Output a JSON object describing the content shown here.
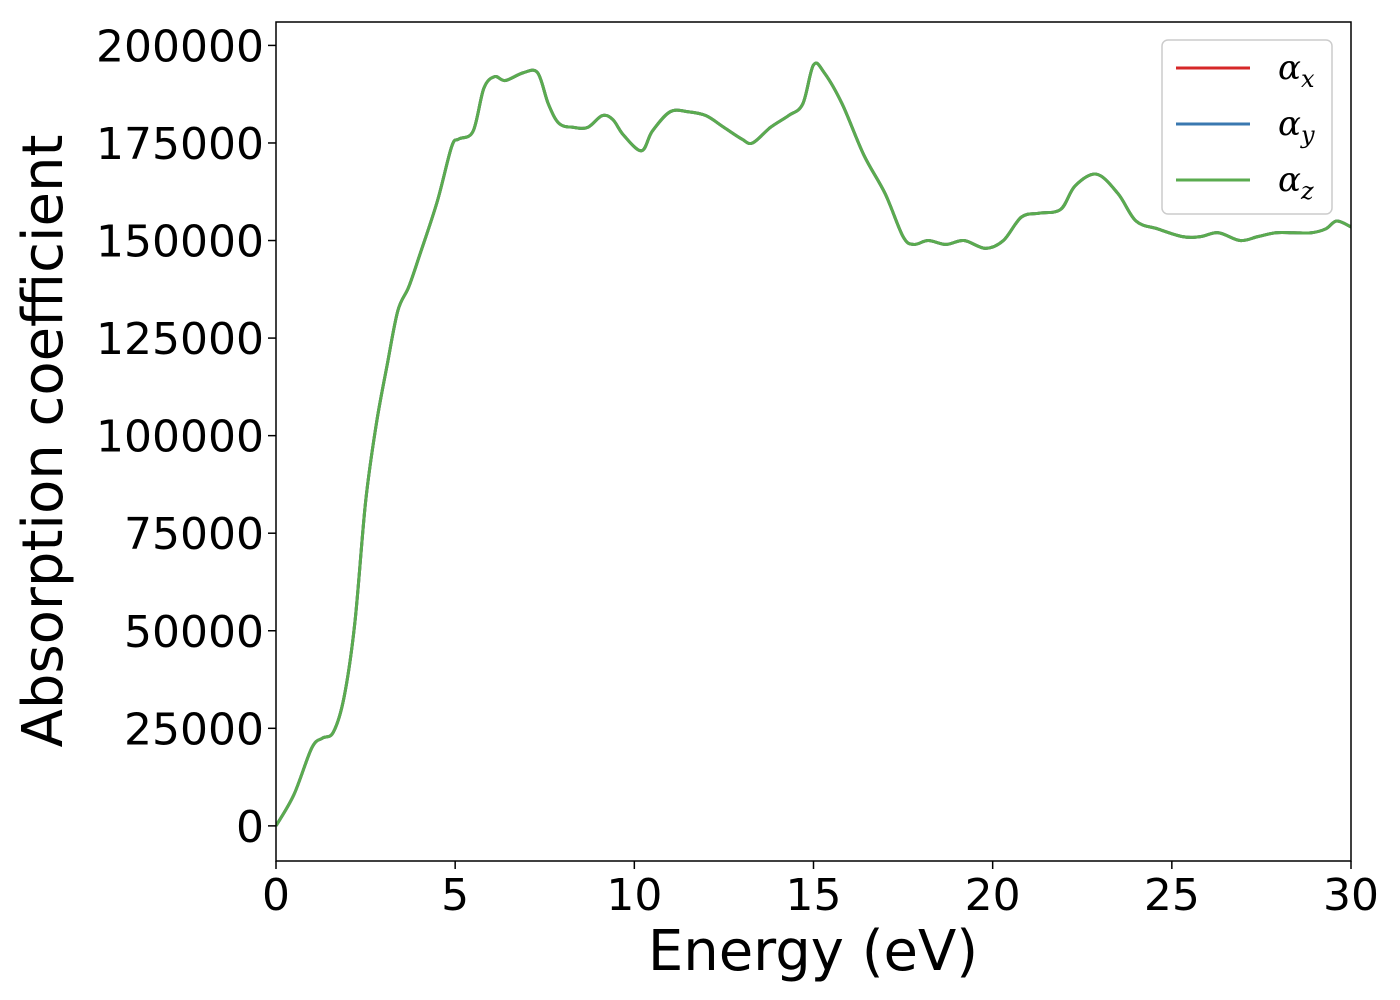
{
  "chart_data": {
    "type": "line",
    "title": "",
    "xlabel": "Energy (eV)",
    "ylabel": "Absorption coefficient",
    "xlim": [
      0,
      30
    ],
    "ylim": [
      -9000,
      206000
    ],
    "xticks": [
      0,
      5,
      10,
      15,
      20,
      25,
      30
    ],
    "xtick_labels": [
      "0",
      "5",
      "10",
      "15",
      "20",
      "25",
      "30"
    ],
    "yticks": [
      0,
      25000,
      50000,
      75000,
      100000,
      125000,
      150000,
      175000,
      200000
    ],
    "ytick_labels": [
      "0",
      "25000",
      "50000",
      "75000",
      "100000",
      "125000",
      "150000",
      "175000",
      "200000"
    ],
    "grid": false,
    "legend_position": "top-right",
    "x": [
      0,
      0.5,
      1,
      1.3,
      1.6,
      1.9,
      2.2,
      2.5,
      2.8,
      3.1,
      3.4,
      3.7,
      4,
      4.5,
      4.9,
      5.1,
      5.5,
      5.8,
      6.1,
      6.4,
      6.9,
      7.3,
      7.6,
      7.9,
      8.3,
      8.7,
      9.1,
      9.4,
      9.7,
      10.2,
      10.5,
      11,
      11.5,
      12,
      12.5,
      13,
      13.3,
      13.8,
      14.3,
      14.7,
      15,
      15.3,
      15.8,
      16.4,
      17,
      17.5,
      17.8,
      18.2,
      18.7,
      19.2,
      19.8,
      20.3,
      20.8,
      21.3,
      21.9,
      22.3,
      22.9,
      23.5,
      24,
      24.6,
      25.3,
      25.8,
      26.3,
      26.9,
      27.4,
      27.9,
      28.4,
      28.9,
      29.3,
      29.6,
      30
    ],
    "series": [
      {
        "name": "α_x",
        "label_base": "α",
        "label_sub": "x",
        "color": "#d62728",
        "values": [
          0,
          8000,
          20000,
          22500,
          24000,
          33000,
          52000,
          83000,
          103000,
          118000,
          132000,
          138000,
          146000,
          160000,
          174000,
          176000,
          178000,
          189000,
          192000,
          191000,
          193000,
          193000,
          185000,
          180000,
          179000,
          179000,
          182000,
          181000,
          177000,
          173000,
          178000,
          183000,
          183000,
          182000,
          179000,
          176000,
          175000,
          179000,
          182000,
          185000,
          195000,
          193000,
          185000,
          172000,
          162000,
          151000,
          149000,
          150000,
          149000,
          150000,
          148000,
          150000,
          156000,
          157000,
          158000,
          164000,
          167000,
          162000,
          155000,
          153000,
          151000,
          151000,
          152000,
          150000,
          151000,
          152000,
          152000,
          152000,
          153000,
          155000,
          153500
        ]
      },
      {
        "name": "α_y",
        "label_base": "α",
        "label_sub": "y",
        "color": "#3a78b0",
        "values": [
          0,
          8000,
          20000,
          22500,
          24000,
          33000,
          52000,
          83000,
          103000,
          118000,
          132000,
          138000,
          146000,
          160000,
          174000,
          176000,
          178000,
          189000,
          192000,
          191000,
          193000,
          193000,
          185000,
          180000,
          179000,
          179000,
          182000,
          181000,
          177000,
          173000,
          178000,
          183000,
          183000,
          182000,
          179000,
          176000,
          175000,
          179000,
          182000,
          185000,
          195000,
          193000,
          185000,
          172000,
          162000,
          151000,
          149000,
          150000,
          149000,
          150000,
          148000,
          150000,
          156000,
          157000,
          158000,
          164000,
          167000,
          162000,
          155000,
          153000,
          151000,
          151000,
          152000,
          150000,
          151000,
          152000,
          152000,
          152000,
          153000,
          155000,
          153500
        ]
      },
      {
        "name": "α_z",
        "label_base": "α",
        "label_sub": "z",
        "color": "#5aab4f",
        "values": [
          0,
          8000,
          20000,
          22500,
          24000,
          33000,
          52000,
          83000,
          103000,
          118000,
          132000,
          138000,
          146000,
          160000,
          174000,
          176000,
          178000,
          189000,
          192000,
          191000,
          193000,
          193000,
          185000,
          180000,
          179000,
          179000,
          182000,
          181000,
          177000,
          173000,
          178000,
          183000,
          183000,
          182000,
          179000,
          176000,
          175000,
          179000,
          182000,
          185000,
          195000,
          193000,
          185000,
          172000,
          162000,
          151000,
          149000,
          150000,
          149000,
          150000,
          148000,
          150000,
          156000,
          157000,
          158000,
          164000,
          167000,
          162000,
          155000,
          153000,
          151000,
          151000,
          152000,
          150000,
          151000,
          152000,
          152000,
          152000,
          153000,
          155000,
          153500
        ]
      }
    ]
  }
}
